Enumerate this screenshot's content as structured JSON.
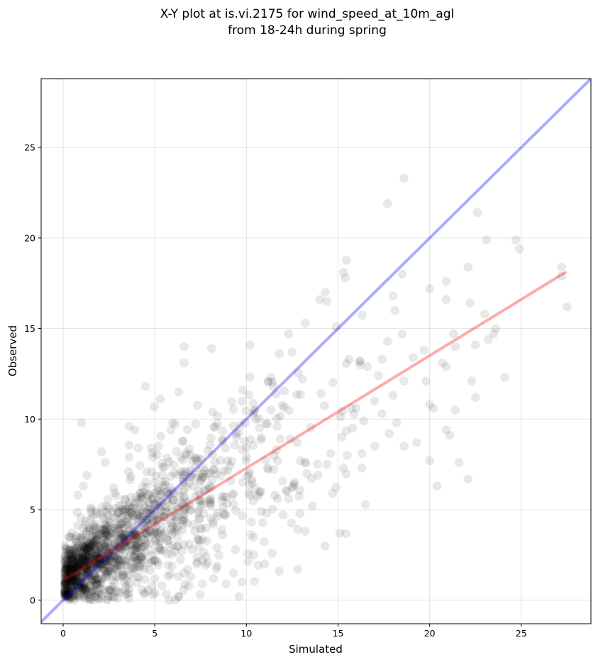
{
  "chart_data": {
    "type": "scatter",
    "title_lines": [
      "X-Y plot at is.vi.2175 for wind_speed_at_10m_agl",
      "from 18-24h during spring"
    ],
    "xlabel": "Simulated",
    "ylabel": "Observed",
    "xlim": [
      -1.2,
      28.8
    ],
    "ylim": [
      -1.3,
      28.8
    ],
    "xticks": [
      0,
      5,
      10,
      15,
      20,
      25
    ],
    "yticks": [
      0,
      5,
      10,
      15,
      20,
      25
    ],
    "grid": true,
    "colors": {
      "points": "#000000",
      "identity_line": "#0000ff",
      "fit_line": "#ff0000"
    },
    "lines": [
      {
        "kind": "identity",
        "x": [
          -1.2,
          28.8
        ],
        "y": [
          -1.2,
          28.8
        ]
      },
      {
        "kind": "fit",
        "x": [
          0.1,
          27.4
        ],
        "y": [
          1.15,
          18.1
        ]
      }
    ],
    "points_note_cluster": {
      "generated": true
    },
    "points": [
      [
        17.7,
        21.9
      ],
      [
        18.6,
        23.3
      ],
      [
        22.6,
        21.4
      ],
      [
        24.7,
        19.9
      ],
      [
        24.9,
        19.4
      ],
      [
        23.1,
        19.9
      ],
      [
        27.2,
        18.4
      ],
      [
        27.2,
        17.9
      ],
      [
        27.5,
        16.2
      ],
      [
        22.1,
        18.4
      ],
      [
        18.5,
        18.0
      ],
      [
        15.3,
        18.1
      ],
      [
        15.4,
        17.8
      ],
      [
        20.0,
        17.2
      ],
      [
        20.9,
        17.6
      ],
      [
        14.3,
        17.0
      ],
      [
        14.4,
        16.5
      ],
      [
        14.0,
        16.6
      ],
      [
        18.0,
        16.8
      ],
      [
        18.1,
        16.0
      ],
      [
        20.9,
        16.6
      ],
      [
        22.2,
        16.4
      ],
      [
        23.0,
        15.8
      ],
      [
        23.5,
        14.7
      ],
      [
        23.2,
        14.4
      ],
      [
        22.5,
        14.1
      ],
      [
        21.4,
        14.0
      ],
      [
        19.7,
        13.8
      ],
      [
        20.9,
        12.9
      ],
      [
        24.1,
        12.3
      ],
      [
        22.3,
        12.1
      ],
      [
        22.5,
        11.2
      ],
      [
        21.4,
        10.5
      ],
      [
        20.2,
        10.6
      ],
      [
        20.0,
        10.8
      ],
      [
        20.9,
        9.4
      ],
      [
        21.1,
        9.1
      ],
      [
        19.3,
        8.7
      ],
      [
        18.6,
        8.5
      ],
      [
        21.6,
        7.6
      ],
      [
        22.1,
        6.7
      ],
      [
        20.0,
        7.7
      ],
      [
        20.4,
        6.3
      ],
      [
        16.5,
        5.3
      ],
      [
        15.1,
        3.7
      ],
      [
        14.3,
        3.0
      ],
      [
        12.8,
        1.7
      ],
      [
        11.8,
        1.6
      ],
      [
        9.6,
        0.2
      ],
      [
        17.7,
        14.3
      ],
      [
        18.5,
        14.7
      ],
      [
        17.4,
        13.3
      ],
      [
        16.2,
        13.2
      ],
      [
        15.6,
        13.3
      ],
      [
        14.9,
        15.1
      ],
      [
        13.2,
        15.3
      ],
      [
        12.3,
        14.7
      ],
      [
        8.1,
        13.9
      ],
      [
        6.6,
        14.0
      ],
      [
        6.6,
        13.1
      ],
      [
        10.2,
        14.1
      ],
      [
        5.3,
        11.1
      ],
      [
        4.5,
        11.8
      ],
      [
        1.0,
        9.8
      ],
      [
        3.9,
        9.4
      ],
      [
        3.6,
        9.6
      ],
      [
        12.5,
        13.7
      ],
      [
        11.2,
        12.1
      ],
      [
        9.8,
        11.6
      ],
      [
        19.1,
        13.4
      ],
      [
        19.8,
        12.1
      ],
      [
        20.7,
        13.1
      ],
      [
        23.6,
        15.0
      ],
      [
        21.3,
        14.7
      ],
      [
        12.8,
        3.9
      ],
      [
        13.2,
        3.8
      ],
      [
        12.0,
        4.7
      ],
      [
        11.1,
        4.8
      ],
      [
        13.6,
        5.2
      ],
      [
        14.7,
        5.9
      ],
      [
        11.4,
        2.6
      ],
      [
        11.0,
        2.0
      ],
      [
        10.4,
        2.5
      ],
      [
        9.3,
        1.5
      ],
      [
        8.9,
        0.9
      ],
      [
        9.4,
        2.8
      ],
      [
        8.2,
        1.2
      ],
      [
        7.6,
        0.9
      ],
      [
        6.6,
        1.5
      ],
      [
        6.3,
        0.2
      ],
      [
        5.8,
        0.0
      ],
      [
        5.4,
        0.8
      ],
      [
        4.9,
        0.3
      ],
      [
        3.6,
        0.1
      ],
      [
        2.6,
        0.2
      ],
      [
        1.5,
        0.3
      ],
      [
        0.3,
        0.5
      ],
      [
        0.4,
        1.7
      ],
      [
        0.2,
        2.9
      ],
      [
        0.3,
        3.5
      ],
      [
        0.8,
        5.8
      ],
      [
        1.1,
        6.3
      ],
      [
        1.3,
        6.9
      ],
      [
        2.1,
        8.2
      ],
      [
        2.3,
        7.6
      ],
      [
        3.6,
        7.9
      ],
      [
        4.1,
        8.4
      ],
      [
        4.8,
        8.4
      ],
      [
        5.2,
        8.5
      ],
      [
        6.3,
        11.5
      ],
      [
        16.2,
        13.0
      ],
      [
        16.6,
        12.9
      ],
      [
        17.2,
        12.4
      ],
      [
        18.0,
        11.3
      ],
      [
        18.6,
        12.1
      ],
      [
        17.0,
        11.0
      ],
      [
        17.4,
        10.3
      ],
      [
        16.0,
        10.6
      ],
      [
        16.4,
        9.9
      ],
      [
        15.8,
        9.5
      ],
      [
        15.2,
        9.0
      ],
      [
        15.5,
        8.0
      ],
      [
        16.3,
        8.1
      ],
      [
        17.0,
        8.5
      ],
      [
        17.8,
        9.2
      ],
      [
        18.2,
        9.8
      ],
      [
        14.4,
        7.5
      ],
      [
        14.6,
        8.1
      ],
      [
        15.3,
        7.3
      ],
      [
        16.3,
        7.3
      ],
      [
        13.9,
        6.9
      ],
      [
        13.3,
        7.0
      ],
      [
        12.6,
        6.4
      ],
      [
        12.2,
        6.0
      ],
      [
        11.7,
        5.6
      ],
      [
        12.3,
        5.6
      ],
      [
        10.8,
        6.0
      ],
      [
        10.2,
        5.8
      ],
      [
        9.3,
        5.3
      ],
      [
        8.8,
        4.8
      ],
      [
        8.2,
        4.2
      ],
      [
        8.7,
        3.6
      ],
      [
        8.4,
        2.9
      ],
      [
        7.8,
        2.4
      ],
      [
        7.3,
        2.0
      ],
      [
        6.8,
        1.7
      ],
      [
        6.3,
        1.3
      ],
      [
        6.0,
        3.0
      ]
    ]
  }
}
